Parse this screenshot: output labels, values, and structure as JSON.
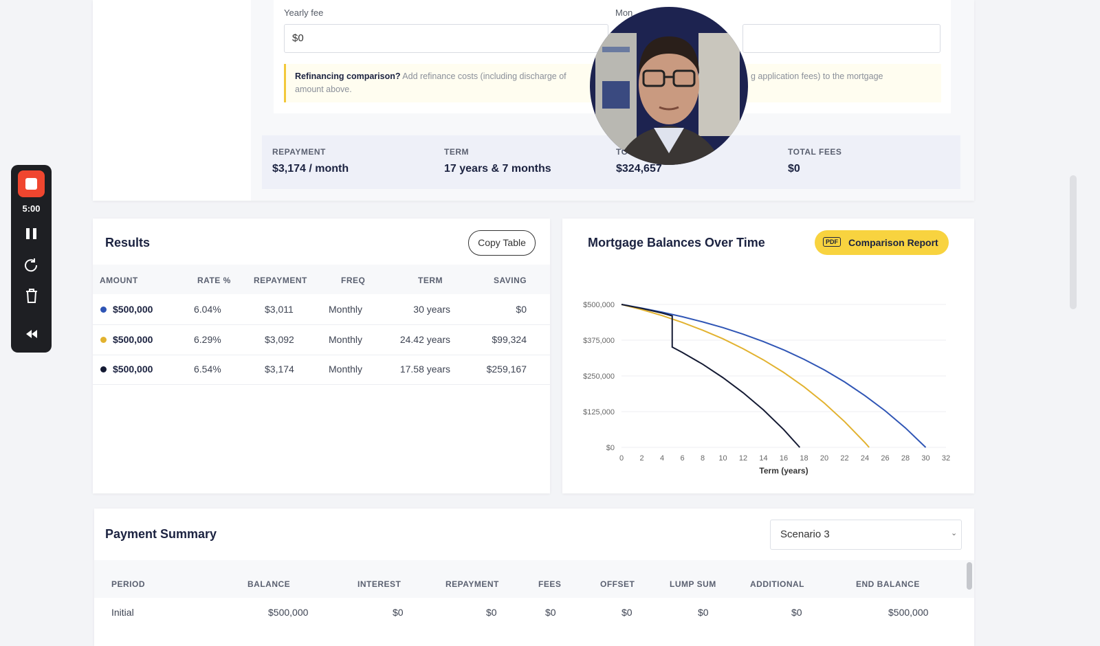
{
  "recorder": {
    "time": "5:00"
  },
  "form": {
    "yearly_fee_label": "Yearly fee",
    "yearly_fee_value": "$0",
    "monthly_fee_label": "Mon",
    "note": {
      "bold": "Refinancing comparison?",
      "text_1": "Add refinance costs (including discharge of",
      "text_2": "g application fees) to the mortgage",
      "text_3": "amount above."
    }
  },
  "summary": [
    {
      "label": "REPAYMENT",
      "value": "$3,174 / month"
    },
    {
      "label": "TERM",
      "value": "17 years & 7 months"
    },
    {
      "label": "TO",
      "value": "$324,657"
    },
    {
      "label": "TOTAL FEES",
      "value": "$0"
    }
  ],
  "results": {
    "title": "Results",
    "button": "Copy Table",
    "columns": [
      "AMOUNT",
      "RATE %",
      "REPAYMENT",
      "FREQ",
      "TERM",
      "SAVING"
    ],
    "rows": [
      [
        "$500,000",
        "6.04%",
        "$3,011",
        "Monthly",
        "30 years",
        "$0"
      ],
      [
        "$500,000",
        "6.29%",
        "$3,092",
        "Monthly",
        "24.42 years",
        "$99,324"
      ],
      [
        "$500,000",
        "6.54%",
        "$3,174",
        "Monthly",
        "17.58 years",
        "$259,167"
      ]
    ]
  },
  "chart_data": {
    "type": "line",
    "title": "Mortgage Balances Over Time",
    "button_badge": "PDF",
    "button": "Comparison Report",
    "x_label": "Term (years)",
    "xlim": [
      0,
      32
    ],
    "xticks": [
      0,
      2,
      4,
      6,
      8,
      10,
      12,
      14,
      16,
      18,
      20,
      22,
      24,
      26,
      28,
      30,
      32
    ],
    "ylim": [
      0,
      500000
    ],
    "yticks": [
      {
        "value": 0,
        "label": "$0"
      },
      {
        "value": 125000,
        "label": "$125,000"
      },
      {
        "value": 250000,
        "label": "$250,000"
      },
      {
        "value": 375000,
        "label": "$375,000"
      },
      {
        "value": 500000,
        "label": "$500,000"
      }
    ],
    "grid": true,
    "series": [
      {
        "color": "#2f55b5",
        "x": [
          0,
          2,
          4,
          6,
          8,
          10,
          12,
          14,
          16,
          18,
          20,
          22,
          24,
          26,
          28,
          30
        ],
        "values": [
          500000,
          487000,
          473000,
          457000,
          439000,
          419000,
          396000,
          370000,
          341000,
          308000,
          271000,
          229000,
          181000,
          128000,
          68000,
          0
        ]
      },
      {
        "color": "#e2b22f",
        "x": [
          0,
          2,
          4,
          6,
          8,
          10,
          12,
          14,
          16,
          18,
          20,
          22,
          24,
          24.42
        ],
        "values": [
          500000,
          482000,
          461000,
          437000,
          410000,
          380000,
          345000,
          306000,
          262000,
          212000,
          155000,
          90000,
          17000,
          0
        ]
      },
      {
        "color": "#141a33",
        "x": [
          0,
          2,
          4,
          5,
          5,
          6,
          8,
          10,
          12,
          14,
          16,
          17.58
        ],
        "values": [
          500000,
          486000,
          470000,
          460000,
          351000,
          332000,
          291000,
          244000,
          191000,
          131000,
          62000,
          0
        ]
      }
    ]
  },
  "payment_summary": {
    "title": "Payment Summary",
    "select": "Scenario 3",
    "columns": [
      "PERIOD",
      "BALANCE",
      "INTEREST",
      "REPAYMENT",
      "FEES",
      "OFFSET",
      "LUMP SUM",
      "ADDITIONAL",
      "END BALANCE"
    ],
    "rows": [
      [
        "Initial",
        "$500,000",
        "$0",
        "$0",
        "$0",
        "$0",
        "$0",
        "$0",
        "$500,000"
      ]
    ]
  }
}
